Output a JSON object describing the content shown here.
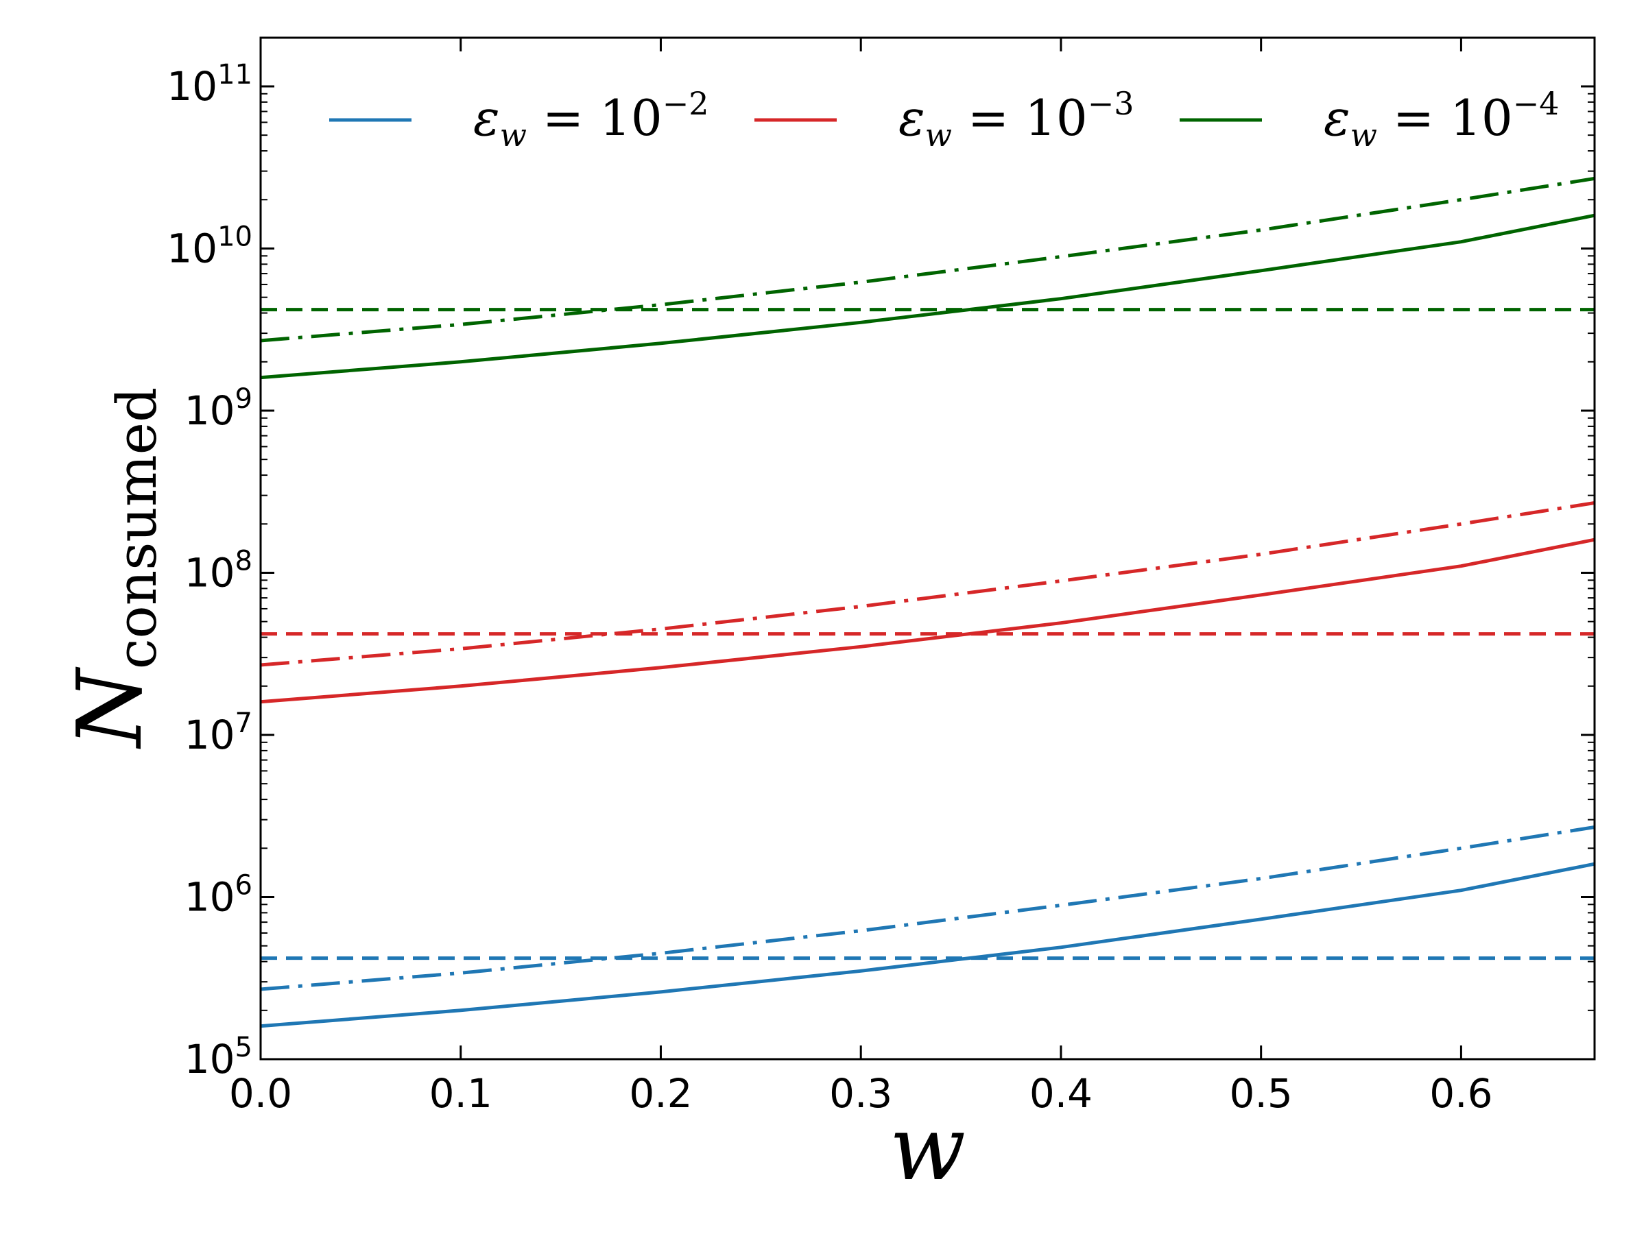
{
  "chart_data": {
    "type": "line",
    "title": "",
    "xlabel": "w",
    "ylabel": {
      "main": "N",
      "subscript": "consumed"
    },
    "xlim": [
      0.0,
      0.6667
    ],
    "ylim_log10": [
      5,
      11.3
    ],
    "yscale": "log",
    "grid": false,
    "legend_position": "top",
    "x_ticks": [
      "0.0",
      "0.1",
      "0.2",
      "0.3",
      "0.4",
      "0.5",
      "0.6"
    ],
    "x_tick_values": [
      0.0,
      0.1,
      0.2,
      0.3,
      0.4,
      0.5,
      0.6
    ],
    "y_ticks": [
      {
        "base": "10",
        "exp": "5",
        "value": 5
      },
      {
        "base": "10",
        "exp": "6",
        "value": 6
      },
      {
        "base": "10",
        "exp": "7",
        "value": 7
      },
      {
        "base": "10",
        "exp": "8",
        "value": 8
      },
      {
        "base": "10",
        "exp": "9",
        "value": 9
      },
      {
        "base": "10",
        "exp": "10",
        "value": 10
      },
      {
        "base": "10",
        "exp": "11",
        "value": 11
      }
    ],
    "legend": [
      {
        "label_symbol": "ε",
        "label_sub": "w",
        "label_eq": " = 10",
        "label_exp": "−2",
        "color": "#1f77b4"
      },
      {
        "label_symbol": "ε",
        "label_sub": "w",
        "label_eq": " = 10",
        "label_exp": "−3",
        "color": "#d62728"
      },
      {
        "label_symbol": "ε",
        "label_sub": "w",
        "label_eq": " = 10",
        "label_exp": "−4",
        "color": "#006400"
      }
    ],
    "series": [
      {
        "name": "eps=1e-2 solid",
        "color": "#1f77b4",
        "style": "solid",
        "x": [
          0.0,
          0.1,
          0.2,
          0.3,
          0.4,
          0.5,
          0.6,
          0.6667
        ],
        "y": [
          160000.0,
          200000.0,
          260000.0,
          350000.0,
          490000.0,
          730000.0,
          1100000.0,
          1600000.0
        ]
      },
      {
        "name": "eps=1e-2 dashdot",
        "color": "#1f77b4",
        "style": "dashdot",
        "x": [
          0.0,
          0.1,
          0.2,
          0.3,
          0.4,
          0.5,
          0.6,
          0.6667
        ],
        "y": [
          270000.0,
          340000.0,
          450000.0,
          620000.0,
          890000.0,
          1300000.0,
          2000000.0,
          2700000.0
        ]
      },
      {
        "name": "eps=1e-2 dashed",
        "color": "#1f77b4",
        "style": "dashed",
        "x": [
          0.0,
          0.6667
        ],
        "y": [
          420000.0,
          420000.0
        ]
      },
      {
        "name": "eps=1e-3 solid",
        "color": "#d62728",
        "style": "solid",
        "x": [
          0.0,
          0.1,
          0.2,
          0.3,
          0.4,
          0.5,
          0.6,
          0.6667
        ],
        "y": [
          16000000.0,
          20000000.0,
          26000000.0,
          35000000.0,
          49000000.0,
          73000000.0,
          110000000.0,
          160000000.0
        ]
      },
      {
        "name": "eps=1e-3 dashdot",
        "color": "#d62728",
        "style": "dashdot",
        "x": [
          0.0,
          0.1,
          0.2,
          0.3,
          0.4,
          0.5,
          0.6,
          0.6667
        ],
        "y": [
          27000000.0,
          34000000.0,
          45000000.0,
          62000000.0,
          89000000.0,
          130000000.0,
          200000000.0,
          270000000.0
        ]
      },
      {
        "name": "eps=1e-3 dashed",
        "color": "#d62728",
        "style": "dashed",
        "x": [
          0.0,
          0.6667
        ],
        "y": [
          42000000.0,
          42000000.0
        ]
      },
      {
        "name": "eps=1e-4 solid",
        "color": "#006400",
        "style": "solid",
        "x": [
          0.0,
          0.1,
          0.2,
          0.3,
          0.4,
          0.5,
          0.6,
          0.6667
        ],
        "y": [
          1600000000.0,
          2000000000.0,
          2600000000.0,
          3500000000.0,
          4900000000.0,
          7300000000.0,
          11000000000.0,
          16000000000.0
        ]
      },
      {
        "name": "eps=1e-4 dashdot",
        "color": "#006400",
        "style": "dashdot",
        "x": [
          0.0,
          0.1,
          0.2,
          0.3,
          0.4,
          0.5,
          0.6,
          0.6667
        ],
        "y": [
          2700000000.0,
          3400000000.0,
          4500000000.0,
          6200000000.0,
          8900000000.0,
          13000000000.0,
          20000000000.0,
          27000000000.0
        ]
      },
      {
        "name": "eps=1e-4 dashed",
        "color": "#006400",
        "style": "dashed",
        "x": [
          0.0,
          0.6667
        ],
        "y": [
          4200000000.0,
          4200000000.0
        ]
      }
    ]
  }
}
